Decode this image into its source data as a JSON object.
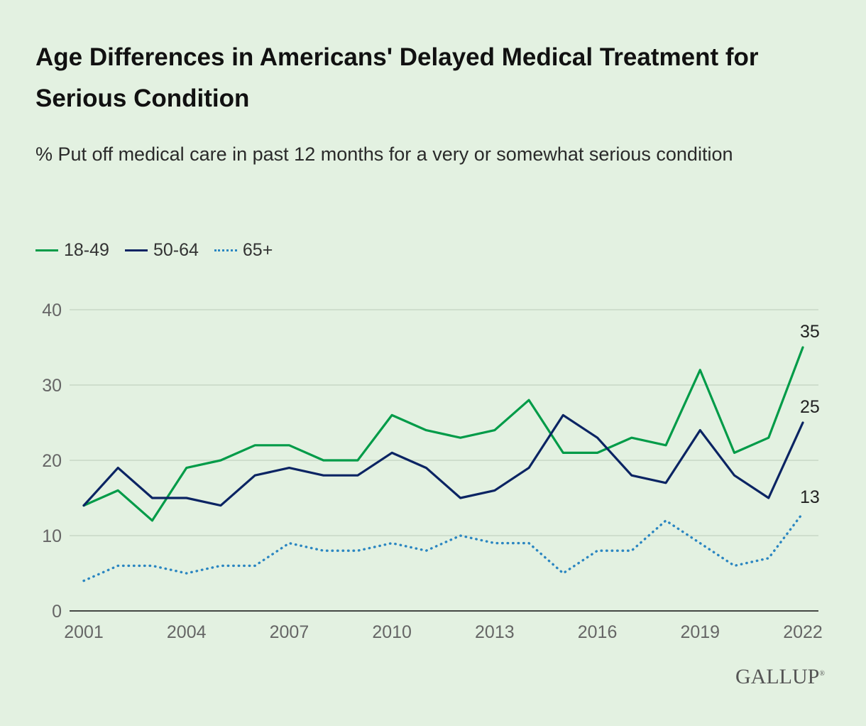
{
  "title": "Age Differences in Americans' Delayed Medical Treatment for Serious Condition",
  "subtitle": "% Put off medical care in past 12 months for a very or somewhat serious condition",
  "logo": "GALLUP",
  "logo_mark": "®",
  "chart_data": {
    "type": "line",
    "title": "Age Differences in Americans' Delayed Medical Treatment for Serious Condition",
    "subtitle": "% Put off medical care in past 12 months for a very or somewhat serious condition",
    "x": [
      2001,
      2002,
      2003,
      2004,
      2005,
      2006,
      2007,
      2008,
      2009,
      2010,
      2011,
      2012,
      2013,
      2014,
      2015,
      2016,
      2017,
      2018,
      2019,
      2020,
      2021,
      2022
    ],
    "x_tick_labels": [
      "2001",
      "2004",
      "2007",
      "2010",
      "2013",
      "2016",
      "2019",
      "2022"
    ],
    "y_tick_labels": [
      "0",
      "10",
      "20",
      "30",
      "40"
    ],
    "ylim": [
      0,
      40
    ],
    "grid": true,
    "legend_position": "top-left",
    "series": [
      {
        "name": "18-49",
        "color": "#009b48",
        "style": "solid",
        "values": [
          14,
          16,
          12,
          19,
          20,
          22,
          22,
          20,
          20,
          26,
          24,
          23,
          24,
          28,
          21,
          21,
          23,
          22,
          32,
          21,
          23,
          35
        ],
        "end_label": "35"
      },
      {
        "name": "50-64",
        "color": "#0b2463",
        "style": "solid",
        "values": [
          14,
          19,
          15,
          15,
          14,
          18,
          19,
          18,
          18,
          21,
          19,
          15,
          16,
          19,
          26,
          23,
          18,
          17,
          24,
          18,
          15,
          25
        ],
        "end_label": "25"
      },
      {
        "name": "65+",
        "color": "#2b86c1",
        "style": "dotted",
        "values": [
          4,
          6,
          6,
          5,
          6,
          6,
          9,
          8,
          8,
          9,
          8,
          10,
          9,
          9,
          5,
          8,
          8,
          12,
          9,
          6,
          7,
          13
        ],
        "end_label": "13"
      }
    ]
  }
}
